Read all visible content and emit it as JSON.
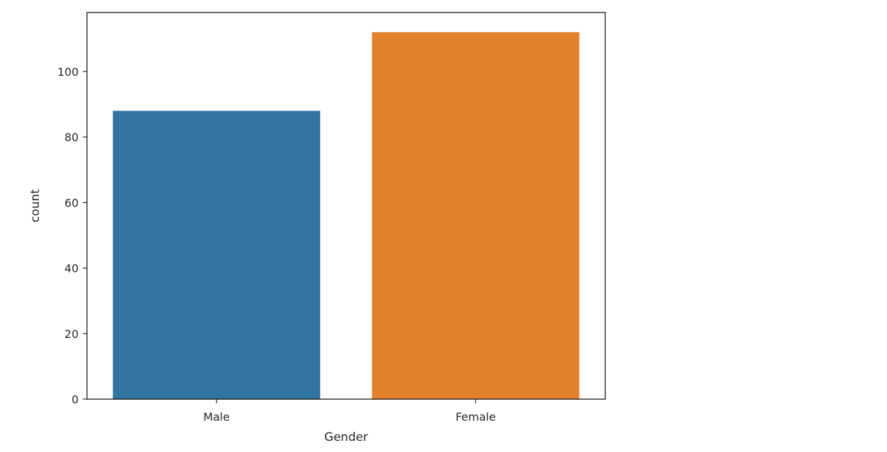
{
  "chart_data": {
    "type": "bar",
    "title": "",
    "xlabel": "Gender",
    "ylabel": "count",
    "categories": [
      "Male",
      "Female"
    ],
    "values": [
      88,
      112
    ],
    "ylim": [
      0,
      118
    ],
    "yticks": [
      0,
      20,
      40,
      60,
      80,
      100
    ],
    "colors": [
      "#3274a1",
      "#e1812c"
    ],
    "grid": false,
    "legend": "none"
  }
}
